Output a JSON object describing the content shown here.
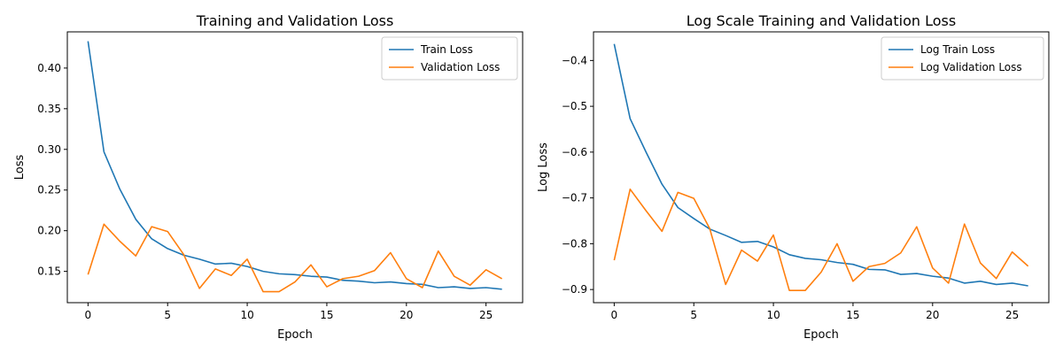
{
  "chart_data": [
    {
      "type": "line",
      "title": "Training and Validation Loss",
      "xlabel": "Epoch",
      "ylabel": "Loss",
      "xlim": [
        -1.3,
        27.3
      ],
      "ylim": [
        0.1115,
        0.4445
      ],
      "xticks": [
        0,
        5,
        10,
        15,
        20,
        25
      ],
      "yticks": [
        0.15,
        0.2,
        0.25,
        0.3,
        0.35,
        0.4
      ],
      "ytick_labels": [
        "0.15",
        "0.20",
        "0.25",
        "0.30",
        "0.35",
        "0.40"
      ],
      "legend_position": "top-right",
      "grid": false,
      "x": [
        0,
        1,
        2,
        3,
        4,
        5,
        6,
        7,
        8,
        9,
        10,
        11,
        12,
        13,
        14,
        15,
        16,
        17,
        18,
        19,
        20,
        21,
        22,
        23,
        24,
        25,
        26
      ],
      "series": [
        {
          "name": "Train Loss",
          "color": "#1f77b4",
          "values": [
            0.433,
            0.297,
            0.251,
            0.214,
            0.19,
            0.178,
            0.17,
            0.165,
            0.159,
            0.16,
            0.156,
            0.15,
            0.147,
            0.146,
            0.144,
            0.143,
            0.139,
            0.138,
            0.136,
            0.137,
            0.135,
            0.134,
            0.13,
            0.131,
            0.129,
            0.13,
            0.128
          ]
        },
        {
          "name": "Validation Loss",
          "color": "#ff7f0e",
          "values": [
            0.146,
            0.208,
            0.187,
            0.169,
            0.205,
            0.199,
            0.171,
            0.129,
            0.153,
            0.145,
            0.165,
            0.125,
            0.125,
            0.137,
            0.158,
            0.131,
            0.141,
            0.144,
            0.151,
            0.173,
            0.141,
            0.13,
            0.175,
            0.144,
            0.133,
            0.152,
            0.141
          ]
        }
      ]
    },
    {
      "type": "line",
      "title": "Log Scale Training and Validation Loss",
      "xlabel": "Epoch",
      "ylabel": "Log Loss",
      "xlim": [
        -1.3,
        27.3
      ],
      "ylim": [
        -0.9287,
        -0.3375
      ],
      "xticks": [
        0,
        5,
        10,
        15,
        20,
        25
      ],
      "yticks": [
        -0.9,
        -0.8,
        -0.7,
        -0.6,
        -0.5,
        -0.4
      ],
      "ytick_labels": [
        "−0.9",
        "−0.8",
        "−0.7",
        "−0.6",
        "−0.5",
        "−0.4"
      ],
      "legend_position": "top-right",
      "grid": false,
      "x": [
        0,
        1,
        2,
        3,
        4,
        5,
        6,
        7,
        8,
        9,
        10,
        11,
        12,
        13,
        14,
        15,
        16,
        17,
        18,
        19,
        20,
        21,
        22,
        23,
        24,
        25,
        26
      ],
      "series": [
        {
          "name": "Log Train Loss",
          "color": "#1f77b4",
          "values": [
            -0.364,
            -0.527,
            -0.6,
            -0.67,
            -0.721,
            -0.745,
            -0.768,
            -0.782,
            -0.797,
            -0.795,
            -0.807,
            -0.824,
            -0.832,
            -0.835,
            -0.841,
            -0.845,
            -0.856,
            -0.857,
            -0.867,
            -0.865,
            -0.871,
            -0.875,
            -0.886,
            -0.882,
            -0.889,
            -0.886,
            -0.892
          ]
        },
        {
          "name": "Log Validation Loss",
          "color": "#ff7f0e",
          "values": [
            -0.836,
            -0.681,
            -0.728,
            -0.773,
            -0.688,
            -0.701,
            -0.767,
            -0.889,
            -0.814,
            -0.838,
            -0.781,
            -0.902,
            -0.902,
            -0.862,
            -0.8,
            -0.882,
            -0.85,
            -0.843,
            -0.82,
            -0.763,
            -0.853,
            -0.886,
            -0.757,
            -0.842,
            -0.876,
            -0.818,
            -0.849
          ]
        }
      ]
    }
  ]
}
